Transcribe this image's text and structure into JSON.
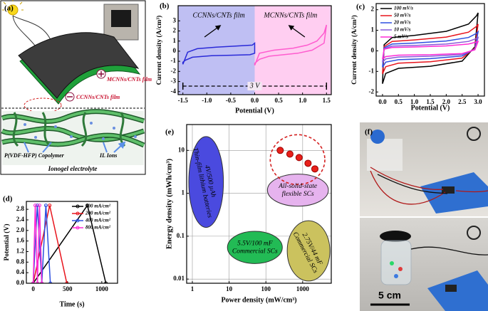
{
  "panel_a": {
    "label": "(a)",
    "top_film": "MCNNs/CNTs film",
    "bottom_film": "CCNNs/CNTs film",
    "polymer": "P(VDF-HFP) Copolymer",
    "ions": "IL Ions",
    "electrolyte": "Ionogel electrolyte"
  },
  "panel_f": {
    "label": "(f)",
    "scale_bar": "5 cm"
  },
  "chart_data": [
    {
      "type": "line",
      "panel": "(b)",
      "xlabel": "Potential (V)",
      "ylabel": "Current density (A/cm³)",
      "xlim": [
        -1.6,
        1.6
      ],
      "ylim": [
        -4.3,
        4.5
      ],
      "xticks": [
        -1.5,
        {
          "value": -1,
          "label": "-1.0"
        },
        -0.5,
        {
          "value": 0,
          "label": "0.0"
        },
        0.5,
        {
          "value": 1,
          "label": "1.0"
        },
        1.5
      ],
      "yticks": [
        -4,
        -3,
        -2,
        -1,
        0,
        1,
        2,
        3
      ],
      "shade": true,
      "label_series": true,
      "span_label": "3 V",
      "series": [
        {
          "name": "CCNNs/CNTs film",
          "color": "#2a2ad8",
          "x": [
            -1.5,
            -1.4,
            -1.2,
            -0.8,
            -0.4,
            -0.05,
            0,
            0,
            -0.1,
            -0.5,
            -0.9,
            -1.3,
            -1.45,
            -1.5,
            -1.5
          ],
          "values": [
            -1.3,
            -0.1,
            0.25,
            0.4,
            0.5,
            0.6,
            0.8,
            -0.2,
            -0.35,
            -0.4,
            -0.45,
            -0.6,
            -0.9,
            -1.1,
            -1.3
          ]
        },
        {
          "name": "MCNNs/CNTs film",
          "color": "#ff5ccf",
          "x": [
            0,
            0.1,
            0.4,
            0.8,
            1.1,
            1.3,
            1.45,
            1.5,
            1.45,
            1.2,
            0.9,
            0.6,
            0.3,
            0.1,
            0,
            0
          ],
          "values": [
            -1.4,
            -0.2,
            0.1,
            0.3,
            0.6,
            1.0,
            1.8,
            2.6,
            0.8,
            0.1,
            -0.2,
            -0.35,
            -0.5,
            -0.8,
            -1.2,
            -1.4
          ]
        }
      ]
    },
    {
      "type": "line",
      "panel": "(c)",
      "xlabel": "Potential (V)",
      "ylabel": "Current density (A/cm³)",
      "xlim": [
        -0.2,
        3.2
      ],
      "ylim": [
        -2.2,
        2.3
      ],
      "xticks": [
        {
          "value": 0,
          "label": "0.0"
        },
        0.5,
        {
          "value": 1,
          "label": "1.0"
        },
        1.5,
        {
          "value": 2,
          "label": "2.0"
        },
        2.5,
        {
          "value": 3,
          "label": "3.0"
        }
      ],
      "yticks": [
        -2,
        -1,
        0,
        1,
        2
      ],
      "legend": "upper left",
      "x": [
        0,
        0.05,
        0.3,
        1,
        2,
        2.7,
        2.95,
        3,
        2.9,
        2.5,
        1.5,
        0.5,
        0.1,
        0
      ],
      "series": [
        {
          "name": "100 mV/s",
          "color": "#000000",
          "values": [
            -1.6,
            0.3,
            0.65,
            0.75,
            0.95,
            1.3,
            1.7,
            1.85,
            0.2,
            -0.5,
            -0.75,
            -0.85,
            -1.1,
            -1.6
          ]
        },
        {
          "name": "50 mV/s",
          "color": "#e8141c",
          "values": [
            -1.12,
            0.21,
            0.46,
            0.53,
            0.67,
            0.91,
            1.19,
            1.3,
            0.14,
            -0.35,
            -0.53,
            -0.6,
            -0.77,
            -1.12
          ]
        },
        {
          "name": "20 mV/s",
          "color": "#2d4fe0",
          "values": [
            -0.8,
            0.15,
            0.33,
            0.38,
            0.48,
            0.65,
            0.85,
            0.93,
            0.1,
            -0.25,
            -0.38,
            -0.43,
            -0.55,
            -0.8
          ]
        },
        {
          "name": "10 mV/s",
          "color": "#8a5ad8",
          "values": [
            -0.56,
            0.11,
            0.23,
            0.26,
            0.33,
            0.46,
            0.6,
            0.65,
            0.07,
            -0.18,
            -0.26,
            -0.3,
            -0.39,
            -0.56
          ]
        },
        {
          "name": "5 mV/s",
          "color": "#ff2ad6",
          "values": [
            -0.4,
            0.08,
            0.16,
            0.19,
            0.24,
            0.33,
            0.43,
            0.46,
            0.05,
            -0.13,
            -0.19,
            -0.21,
            -0.28,
            -0.4
          ]
        }
      ]
    },
    {
      "type": "line",
      "panel": "(d)",
      "xlabel": "Time (s)",
      "ylabel": "Potential (V)",
      "xlim": [
        -100,
        1230
      ],
      "ylim": [
        0,
        3.1
      ],
      "xticks": [
        0,
        500,
        1000
      ],
      "yticks": [
        {
          "value": 0,
          "label": "0.0"
        },
        0.4,
        0.8,
        1.2,
        1.6,
        {
          "value": 2,
          "label": "2.0"
        },
        2.4,
        2.8
      ],
      "legend": "upper right",
      "markers": true,
      "series": [
        {
          "name": "100 mA/cm²",
          "color": "#000000",
          "x": [
            0,
            790,
            1060
          ],
          "values": [
            0,
            2.95,
            0
          ]
        },
        {
          "name": "200 mA/cm²",
          "color": "#e8141c",
          "x": [
            0,
            240,
            490
          ],
          "values": [
            0,
            2.95,
            0
          ]
        },
        {
          "name": "400 mA/cm²",
          "color": "#2d4fe0",
          "x": [
            0,
            60,
            125,
            185,
            250
          ],
          "values": [
            0,
            2.95,
            0,
            2.95,
            0
          ]
        },
        {
          "name": "800 mA/cm²",
          "color": "#ff2ad6",
          "x": [
            0,
            30,
            62,
            92,
            125
          ],
          "values": [
            0,
            2.95,
            0,
            2.95,
            0
          ]
        }
      ]
    },
    {
      "type": "scatter",
      "panel": "(e)",
      "xlabel": "Power density (mW/cm³)",
      "ylabel": "Energy density (mWh/cm³)",
      "xlog": true,
      "ylog": true,
      "grid": true,
      "xlim": [
        0.7,
        6000
      ],
      "ylim": [
        0.008,
        40
      ],
      "xticks": [
        1,
        10,
        100,
        1000
      ],
      "yticks": [
        0.01,
        0.1,
        1,
        10
      ],
      "series": [
        {
          "color": "#e8201a",
          "x": [
            245,
            450,
            800,
            1400,
            2150
          ],
          "values": [
            10,
            8.2,
            6.8,
            5.0,
            3.7
          ]
        }
      ],
      "regions": [
        {
          "label": [
            "4V/500 µAh",
            "Thin-film lithium batteries"
          ],
          "color": "#4a4adf",
          "x": [
            0.8,
            7
          ],
          "y": [
            0.16,
            21
          ]
        },
        {
          "label": [
            "All-solid-state",
            "flexible SCs"
          ],
          "color": "#e6b3ee",
          "x": [
            110,
            5000
          ],
          "y": [
            0.5,
            2.8
          ]
        },
        {
          "label": [
            "5.5V/100 mF",
            "Commercial SCs"
          ],
          "color": "#22bb55",
          "x": [
            9,
            280
          ],
          "y": [
            0.023,
            0.13
          ]
        },
        {
          "label": [
            "2.75V/44 mF",
            "Commercial SCs"
          ],
          "color": "#cbc25e",
          "x": [
            380,
            5500
          ],
          "y": [
            0.009,
            0.23
          ]
        }
      ]
    }
  ]
}
